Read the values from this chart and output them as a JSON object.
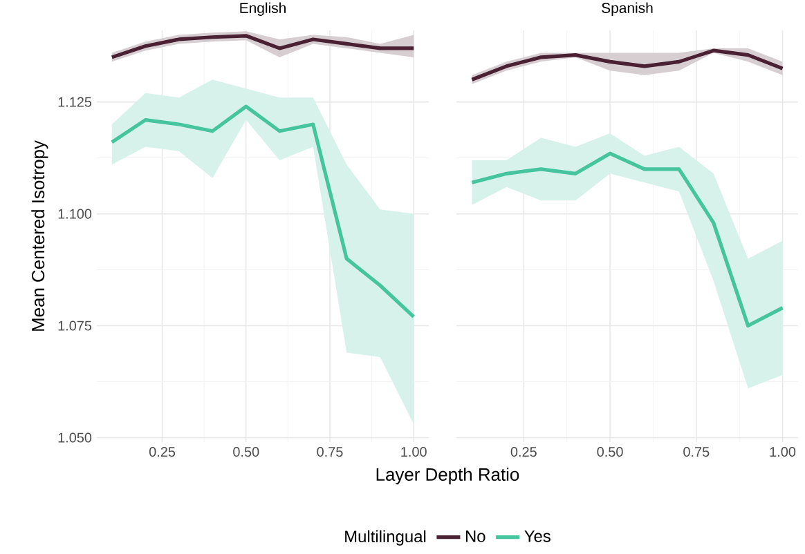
{
  "chart_data": [
    {
      "type": "line",
      "title": "English",
      "xlabel": "Layer Depth Ratio",
      "ylabel": "Mean Centered Isotropy",
      "legend_title": "Multilingual",
      "legend": "bottom",
      "grid": true,
      "x": [
        0.1,
        0.2,
        0.3,
        0.4,
        0.5,
        0.6,
        0.7,
        0.8,
        0.9,
        1.0
      ],
      "xlim": [
        0.055,
        1.045
      ],
      "xticks": [
        {
          "value": 0.25,
          "label": "0.25"
        },
        {
          "value": 0.5,
          "label": "0.50"
        },
        {
          "value": 0.75,
          "label": "0.75"
        },
        {
          "value": 1.0,
          "label": "1.00"
        }
      ],
      "ylim": [
        1.049,
        1.141
      ],
      "yticks": [
        {
          "value": 1.05,
          "label": "1.050"
        },
        {
          "value": 1.075,
          "label": "1.075"
        },
        {
          "value": 1.1,
          "label": "1.100"
        },
        {
          "value": 1.125,
          "label": "1.125"
        }
      ],
      "series": [
        {
          "name": "No",
          "color": "#4a2133",
          "values": [
            1.135,
            1.1375,
            1.139,
            1.1395,
            1.1398,
            1.137,
            1.139,
            1.138,
            1.137,
            1.137
          ],
          "lower": [
            1.134,
            1.1365,
            1.138,
            1.1385,
            1.1388,
            1.135,
            1.138,
            1.137,
            1.136,
            1.135
          ],
          "upper": [
            1.136,
            1.1385,
            1.14,
            1.1405,
            1.1408,
            1.139,
            1.14,
            1.1395,
            1.138,
            1.14
          ]
        },
        {
          "name": "Yes",
          "color": "#45c49e",
          "values": [
            1.116,
            1.121,
            1.12,
            1.1185,
            1.124,
            1.1185,
            1.12,
            1.09,
            1.084,
            1.077
          ],
          "lower": [
            1.111,
            1.115,
            1.114,
            1.108,
            1.121,
            1.112,
            1.115,
            1.069,
            1.068,
            1.053
          ],
          "upper": [
            1.12,
            1.127,
            1.126,
            1.13,
            1.128,
            1.126,
            1.126,
            1.111,
            1.101,
            1.1
          ]
        }
      ]
    },
    {
      "type": "line",
      "title": "Spanish",
      "grid": true,
      "tick_labels": "x",
      "x": [
        0.1,
        0.2,
        0.3,
        0.4,
        0.5,
        0.6,
        0.7,
        0.8,
        0.9,
        1.0
      ],
      "xlim": [
        0.055,
        1.045
      ],
      "xticks": [
        {
          "value": 0.25,
          "label": "0.25"
        },
        {
          "value": 0.5,
          "label": "0.50"
        },
        {
          "value": 0.75,
          "label": "0.75"
        },
        {
          "value": 1.0,
          "label": "1.00"
        }
      ],
      "ylim": [
        1.049,
        1.141
      ],
      "yticks": [
        1.05,
        1.075,
        1.1,
        1.125
      ],
      "series": [
        {
          "color": "#4a2133",
          "values": [
            1.13,
            1.133,
            1.135,
            1.1355,
            1.134,
            1.133,
            1.134,
            1.1365,
            1.1355,
            1.1325
          ],
          "lower": [
            1.129,
            1.132,
            1.134,
            1.135,
            1.132,
            1.131,
            1.132,
            1.136,
            1.134,
            1.131
          ],
          "upper": [
            1.131,
            1.134,
            1.136,
            1.136,
            1.136,
            1.136,
            1.136,
            1.137,
            1.137,
            1.134
          ]
        },
        {
          "color": "#45c49e",
          "values": [
            1.107,
            1.109,
            1.11,
            1.109,
            1.1135,
            1.11,
            1.11,
            1.098,
            1.075,
            1.079
          ],
          "lower": [
            1.102,
            1.106,
            1.103,
            1.103,
            1.109,
            1.107,
            1.105,
            1.085,
            1.061,
            1.064
          ],
          "upper": [
            1.112,
            1.112,
            1.117,
            1.115,
            1.118,
            1.113,
            1.115,
            1.109,
            1.09,
            1.094
          ]
        }
      ]
    }
  ]
}
